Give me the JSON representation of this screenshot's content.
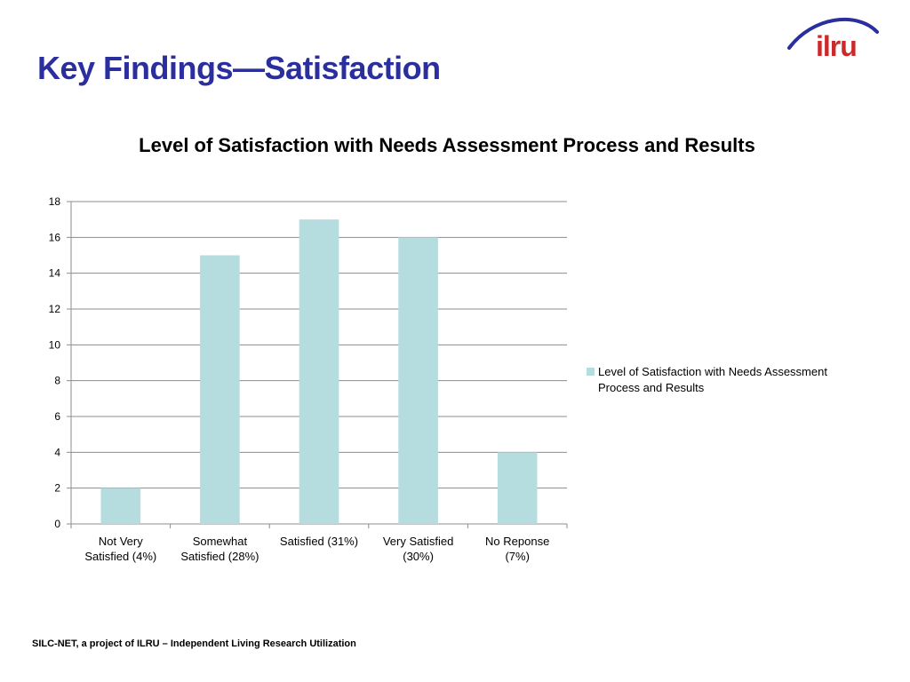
{
  "slide": {
    "title": "Key Findings—Satisfaction",
    "logo_text": "ilru",
    "footer": "SILC-NET, a project of ILRU – Independent Living Research Utilization"
  },
  "colors": {
    "title": "#2b2f9e",
    "bar": "#b5dde0",
    "logo_red": "#cc2a2a",
    "logo_arc": "#2b2f9e"
  },
  "chart_data": {
    "type": "bar",
    "title": "Level of Satisfaction with Needs Assessment Process and Results",
    "categories": [
      [
        "Not Very",
        "Satisfied (4%)"
      ],
      [
        "Somewhat",
        "Satisfied (28%)"
      ],
      [
        "Satisfied (31%)"
      ],
      [
        "Very Satisfied",
        "(30%)"
      ],
      [
        "No Reponse",
        "(7%)"
      ]
    ],
    "series": [
      {
        "name": "Level of Satisfaction with Needs Assessment Process and Results",
        "values": [
          2,
          15,
          17,
          16,
          4
        ]
      }
    ],
    "ylim": [
      0,
      18
    ],
    "yticks": [
      0,
      2,
      4,
      6,
      8,
      10,
      12,
      14,
      16,
      18
    ],
    "xlabel": "",
    "ylabel": "",
    "grid": true,
    "legend_position": "right"
  }
}
